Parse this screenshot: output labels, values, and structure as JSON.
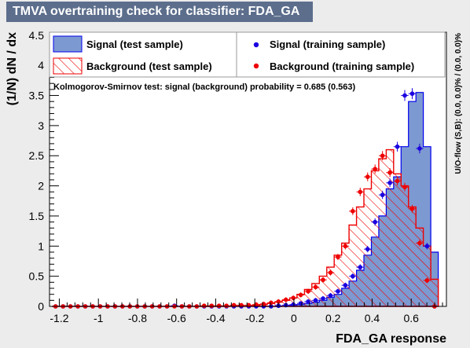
{
  "title": "TMVA overtraining check for classifier: FDA_GA",
  "chart_data": {
    "type": "histogram",
    "xlabel": "FDA_GA response",
    "ylabel": "(1/N) dN / dx",
    "xlim": [
      -1.25,
      0.78
    ],
    "ylim": [
      0,
      4.55
    ],
    "x_ticks": [
      "-1.2",
      "-1",
      "-0.8",
      "-0.6",
      "-0.4",
      "-0.2",
      "0",
      "0.2",
      "0.4",
      "0.6"
    ],
    "y_ticks": [
      "0",
      "0.5",
      "1",
      "1.5",
      "2",
      "2.5",
      "3",
      "3.5",
      "4",
      "4.5"
    ],
    "ks_text": "Kolmogorov-Smirnov test: signal (background) probability = 0.685 (0.563)",
    "side_text": "U/O-flow (S,B): (0.0, 0.0)% / (0.0, 0.0)%",
    "bin_edges": [
      -1.238,
      -1.2,
      -1.162,
      -1.124,
      -1.086,
      -1.048,
      -1.01,
      -0.972,
      -0.934,
      -0.896,
      -0.858,
      -0.82,
      -0.782,
      -0.744,
      -0.706,
      -0.668,
      -0.63,
      -0.592,
      -0.554,
      -0.516,
      -0.478,
      -0.44,
      -0.402,
      -0.364,
      -0.326,
      -0.288,
      -0.25,
      -0.212,
      -0.174,
      -0.136,
      -0.098,
      -0.06,
      -0.022,
      0.016,
      0.054,
      0.092,
      0.13,
      0.168,
      0.206,
      0.244,
      0.282,
      0.32,
      0.358,
      0.396,
      0.434,
      0.472,
      0.51,
      0.548,
      0.586,
      0.624,
      0.662,
      0.7,
      0.738
    ],
    "legend": {
      "signal_test": "Signal (test sample)",
      "signal_train": "Signal (training sample)",
      "background_test": "Background (test sample)",
      "background_train": "Background (training sample)"
    },
    "series": [
      {
        "name": "Signal (test sample)",
        "style": "filled-histogram",
        "color": "#7d99d1",
        "edge": "#0000ee",
        "values": [
          0,
          0,
          0,
          0,
          0,
          0,
          0,
          0,
          0,
          0,
          0,
          0,
          0,
          0,
          0,
          0,
          0,
          0,
          0,
          0,
          0,
          0,
          0,
          0,
          0,
          0,
          0,
          0,
          0,
          0,
          0,
          0,
          0.02,
          0.03,
          0.05,
          0.07,
          0.1,
          0.15,
          0.2,
          0.3,
          0.42,
          0.6,
          0.85,
          1.15,
          1.5,
          1.95,
          2.15,
          2.65,
          3.4,
          3.55,
          2.65,
          0.9
        ]
      },
      {
        "name": "Background (test sample)",
        "style": "hatched-histogram",
        "color": "#ee0000",
        "values": [
          0,
          0,
          0,
          0,
          0,
          0,
          0,
          0,
          0,
          0,
          0,
          0,
          0,
          0,
          0,
          0,
          0,
          0,
          0,
          0,
          0,
          0,
          0,
          0,
          0,
          0,
          0,
          0.02,
          0.03,
          0.05,
          0.07,
          0.1,
          0.14,
          0.2,
          0.28,
          0.38,
          0.5,
          0.65,
          0.85,
          1.05,
          1.35,
          1.65,
          1.95,
          2.25,
          2.45,
          2.6,
          2.2,
          2.0,
          1.65,
          1.3,
          1.0,
          0.45
        ]
      },
      {
        "name": "Signal (training sample)",
        "style": "points",
        "color": "#1a00e0",
        "values": [
          0,
          0,
          0,
          0,
          0,
          0,
          0,
          0,
          0,
          0,
          0,
          0,
          0,
          0,
          0,
          0,
          0.01,
          0,
          0,
          0,
          0,
          0,
          0,
          0,
          0,
          0,
          0,
          0,
          0,
          0,
          0.01,
          0.02,
          0.03,
          0.05,
          0.08,
          0.1,
          0.13,
          0.18,
          0.25,
          0.35,
          0.5,
          0.65,
          0.95,
          1.4,
          1.85,
          2.05,
          2.65,
          3.5,
          3.53,
          2.62,
          1.0,
          0.0
        ]
      },
      {
        "name": "Background (training sample)",
        "style": "points",
        "color": "#ee0000",
        "values": [
          0,
          0,
          0,
          0,
          0,
          0,
          0,
          0,
          0,
          0,
          0,
          0,
          0,
          0,
          0,
          0,
          0,
          0,
          0,
          0,
          0.01,
          0.01,
          0.01,
          0.01,
          0.02,
          0.02,
          0.02,
          0.03,
          0.04,
          0.06,
          0.08,
          0.11,
          0.14,
          0.19,
          0.25,
          0.32,
          0.44,
          0.56,
          0.82,
          1.0,
          1.58,
          1.9,
          2.15,
          2.28,
          2.5,
          2.22,
          2.08,
          1.98,
          1.62,
          1.05,
          0.43,
          0.0
        ]
      }
    ]
  }
}
